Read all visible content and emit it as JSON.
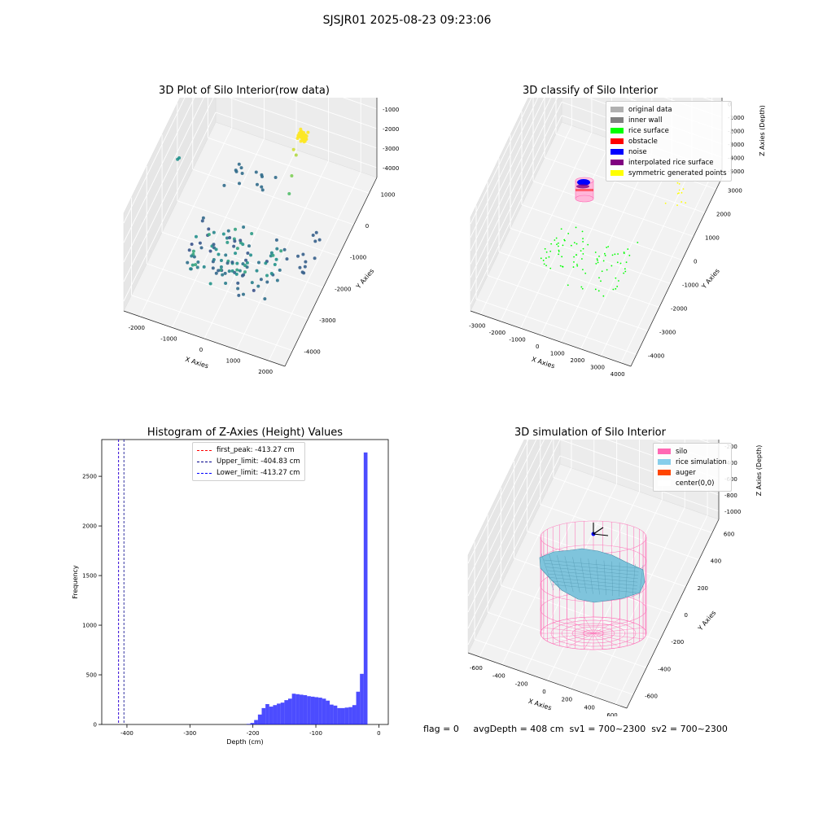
{
  "figure": {
    "suptitle": "SJSJR01 2025-08-23 09:23:06",
    "footer": "flag = 0     avgDepth = 408 cm  sv1 = 700~2300  sv2 = 700~2300"
  },
  "panels": {
    "raw": {
      "title": "3D Plot of Silo Interior(row data)",
      "xlabel": "X Axies",
      "ylabel": "Y Axies",
      "zlabel": "Z Axies (Depth)",
      "xticks": [
        "-2000",
        "-1000",
        "0",
        "1000",
        "2000"
      ],
      "yticks": [
        "1000",
        "0",
        "-1000",
        "-2000",
        "-3000",
        "-4000"
      ],
      "zticks": [
        "0",
        "-1000",
        "-2000",
        "-3000",
        "-4000"
      ]
    },
    "classify": {
      "title": "3D classify of Silo Interior",
      "xlabel": "X Axies",
      "ylabel": "Y Axies",
      "zlabel": "Z Axies (Depth)",
      "xticks": [
        "-3000",
        "-2000",
        "-1000",
        "0",
        "1000",
        "2000",
        "3000",
        "4000"
      ],
      "yticks": [
        "3000",
        "2000",
        "1000",
        "0",
        "-1000",
        "-2000",
        "-3000",
        "-4000"
      ],
      "zticks": [
        "1000",
        "0",
        "-1000",
        "-2000",
        "-3000",
        "-4000",
        "-5000"
      ],
      "legend": [
        {
          "label": "original data",
          "color": "#b0b0b0"
        },
        {
          "label": "inner wall",
          "color": "#808080"
        },
        {
          "label": "rice surface",
          "color": "#00ff00"
        },
        {
          "label": "obstacle",
          "color": "#ff0000"
        },
        {
          "label": "noise",
          "color": "#0000ff"
        },
        {
          "label": "interpolated rice surface",
          "color": "#800080"
        },
        {
          "label": "symmetric generated points",
          "color": "#ffff00"
        }
      ]
    },
    "simulation": {
      "title": "3D simulation of Silo Interior",
      "xlabel": "X Axies",
      "ylabel": "Y Axies",
      "zlabel": "Z Axies (Depth)",
      "xticks": [
        "-600",
        "-400",
        "-200",
        "0",
        "200",
        "400",
        "600"
      ],
      "yticks": [
        "600",
        "400",
        "200",
        "0",
        "-200",
        "-400",
        "-600"
      ],
      "zticks": [
        "0",
        "-200",
        "-400",
        "-600",
        "-800",
        "-1000"
      ],
      "legend": [
        {
          "label": "silo",
          "color": "#ff69b4"
        },
        {
          "label": "rice simulation",
          "color": "#87ceeb"
        },
        {
          "label": "auger",
          "color": "#ff4500"
        },
        {
          "label": "center(0,0)",
          "color": "#ffffff"
        }
      ]
    }
  },
  "chart_data": [
    {
      "type": "bar",
      "title": "Histogram of Z-Axies (Height) Values",
      "xlabel": "Depth (cm)",
      "ylabel": "Frequency",
      "xlim": [
        -440,
        15
      ],
      "ylim": [
        0,
        2870
      ],
      "xticks": [
        -400,
        -300,
        -200,
        -100,
        0
      ],
      "yticks": [
        0,
        500,
        1000,
        1500,
        2000,
        2500
      ],
      "bin_width": 6,
      "bins_start": [
        -210,
        -204,
        -198,
        -192,
        -186,
        -180,
        -174,
        -168,
        -162,
        -156,
        -150,
        -144,
        -138,
        -132,
        -126,
        -120,
        -114,
        -108,
        -102,
        -96,
        -90,
        -84,
        -78,
        -72,
        -66,
        -60,
        -54,
        -48,
        -42,
        -36,
        -30,
        -24,
        -18,
        -12,
        -6
      ],
      "values": [
        5,
        15,
        45,
        100,
        165,
        205,
        180,
        195,
        210,
        220,
        245,
        260,
        310,
        305,
        300,
        295,
        285,
        280,
        275,
        270,
        260,
        240,
        200,
        190,
        165,
        165,
        170,
        175,
        195,
        330,
        510,
        2740,
        0,
        0,
        0
      ],
      "bar_color": "#0000ff",
      "vlines": [
        {
          "label": "first_peak: -413.27 cm",
          "x": -413.27,
          "color": "#ff0000"
        },
        {
          "label": "Upper_limit: -404.83 cm",
          "x": -404.83,
          "color": "#00008b"
        },
        {
          "label": "Lower_limit: -413.27 cm",
          "x": -413.27,
          "color": "#0000ff"
        }
      ],
      "legend_position": "upper-center"
    }
  ]
}
